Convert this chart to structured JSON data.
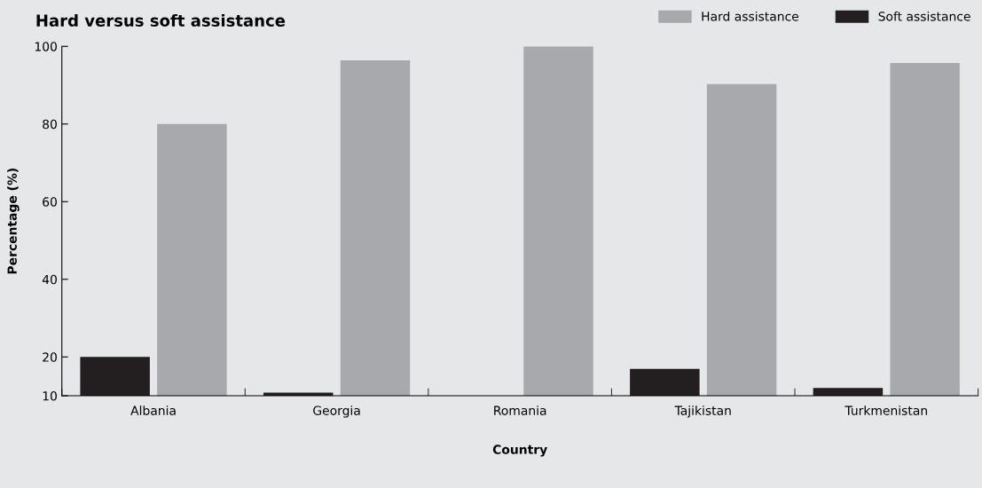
{
  "chart_data": {
    "type": "bar",
    "title": "Hard versus soft assistance",
    "xlabel": "Country",
    "ylabel": "Percentage (%)",
    "categories": [
      "Albania",
      "Georgia",
      "Romania",
      "Tajikistan",
      "Turkmenistan"
    ],
    "series": [
      {
        "name": "Soft assistance",
        "color": "#231f20",
        "values": [
          20,
          10.8,
          null,
          16.9,
          12
        ]
      },
      {
        "name": "Hard assistance",
        "color": "#a7a9ac",
        "values": [
          80,
          96.4,
          100,
          90.3,
          95.7
        ]
      }
    ],
    "ylim": [
      10,
      100
    ],
    "yticks": [
      10,
      20,
      40,
      60,
      80,
      100
    ],
    "grid": false,
    "legend": "top right"
  }
}
